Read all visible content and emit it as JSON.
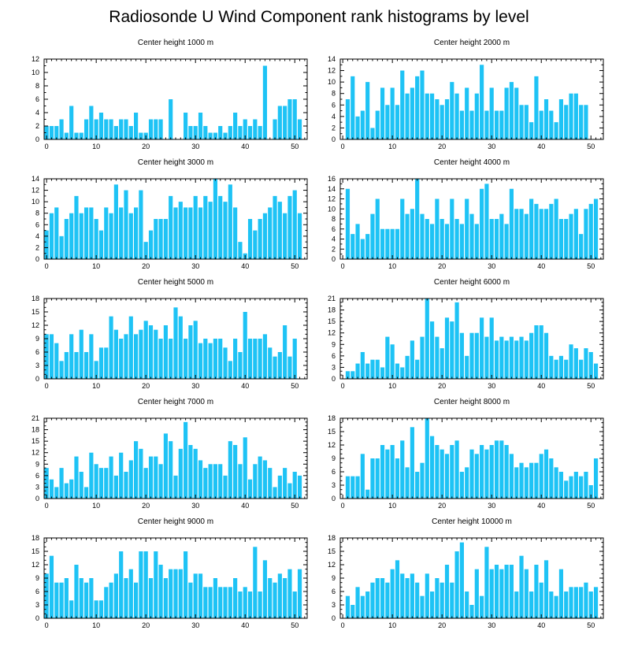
{
  "title": "Radiosonde U Wind Component rank histograms by level",
  "colors": {
    "bar": "#1ec3f5",
    "axis": "#000000",
    "background": "#ffffff"
  },
  "chart_data": [
    {
      "type": "bar",
      "title": "Center height 1000 m",
      "xlim": [
        -0.5,
        52.5
      ],
      "ylim": [
        0,
        12
      ],
      "xticks": [
        0,
        10,
        20,
        30,
        40,
        50
      ],
      "yticks": [
        0,
        2,
        4,
        6,
        8,
        10,
        12
      ],
      "values": [
        2,
        2,
        2,
        3,
        1,
        5,
        1,
        1,
        3,
        5,
        3,
        4,
        3,
        3,
        2,
        3,
        3,
        2,
        4,
        1,
        1,
        3,
        3,
        3,
        0,
        6,
        0,
        0,
        4,
        2,
        2,
        4,
        2,
        1,
        1,
        2,
        1,
        2,
        4,
        2,
        3,
        2,
        3,
        2,
        11,
        0,
        3,
        5,
        5,
        6,
        6,
        3
      ]
    },
    {
      "type": "bar",
      "title": "Center height 2000 m",
      "xlim": [
        -0.5,
        52.5
      ],
      "ylim": [
        0,
        14
      ],
      "xticks": [
        0,
        10,
        20,
        30,
        40,
        50
      ],
      "yticks": [
        0,
        2,
        4,
        6,
        8,
        10,
        12,
        14
      ],
      "values": [
        0,
        7,
        11,
        4,
        5,
        10,
        2,
        5,
        9,
        6,
        9,
        6,
        12,
        8,
        9,
        11,
        12,
        8,
        8,
        7,
        6,
        7,
        10,
        8,
        5,
        9,
        5,
        8,
        13,
        5,
        9,
        5,
        5,
        9,
        10,
        9,
        6,
        6,
        3,
        11,
        5,
        7,
        5,
        3,
        7,
        6,
        8,
        8,
        6,
        6,
        0,
        0
      ]
    },
    {
      "type": "bar",
      "title": "Center height 3000 m",
      "xlim": [
        -0.5,
        52.5
      ],
      "ylim": [
        0,
        14
      ],
      "xticks": [
        0,
        10,
        20,
        30,
        40,
        50
      ],
      "yticks": [
        0,
        2,
        4,
        6,
        8,
        10,
        12,
        14
      ],
      "values": [
        5,
        8,
        9,
        4,
        7,
        8,
        11,
        8,
        9,
        9,
        7,
        5,
        9,
        8,
        13,
        9,
        12,
        8,
        9,
        12,
        3,
        5,
        7,
        7,
        7,
        11,
        9,
        10,
        9,
        9,
        11,
        9,
        11,
        10,
        14,
        11,
        10,
        13,
        9,
        3,
        1,
        7,
        5,
        7,
        8,
        9,
        11,
        10,
        8,
        11,
        12,
        8
      ]
    },
    {
      "type": "bar",
      "title": "Center height 4000 m",
      "xlim": [
        -0.5,
        52.5
      ],
      "ylim": [
        0,
        16
      ],
      "xticks": [
        0,
        10,
        20,
        30,
        40,
        50
      ],
      "yticks": [
        0,
        2,
        4,
        6,
        8,
        10,
        12,
        14,
        16
      ],
      "values": [
        0,
        14,
        5,
        7,
        4,
        5,
        9,
        12,
        6,
        6,
        6,
        6,
        12,
        9,
        10,
        16,
        9,
        8,
        7,
        12,
        8,
        7,
        12,
        8,
        7,
        12,
        9,
        7,
        14,
        15,
        8,
        8,
        9,
        7,
        14,
        10,
        10,
        9,
        12,
        11,
        10,
        10,
        11,
        12,
        8,
        8,
        9,
        10,
        5,
        10,
        11,
        12
      ]
    },
    {
      "type": "bar",
      "title": "Center height 5000 m",
      "xlim": [
        -0.5,
        52.5
      ],
      "ylim": [
        0,
        18
      ],
      "xticks": [
        0,
        10,
        20,
        30,
        40,
        50
      ],
      "yticks": [
        0,
        3,
        6,
        9,
        12,
        15,
        18
      ],
      "values": [
        10,
        10,
        8,
        4,
        6,
        10,
        6,
        11,
        6,
        10,
        4,
        7,
        7,
        14,
        11,
        9,
        10,
        14,
        10,
        11,
        13,
        12,
        11,
        9,
        12,
        9,
        16,
        14,
        9,
        12,
        13,
        8,
        9,
        8,
        9,
        9,
        7,
        4,
        9,
        6,
        15,
        9,
        9,
        9,
        10,
        7,
        5,
        6,
        12,
        5,
        9,
        0
      ]
    },
    {
      "type": "bar",
      "title": "Center height 6000 m",
      "xlim": [
        -0.5,
        52.5
      ],
      "ylim": [
        0,
        21
      ],
      "xticks": [
        0,
        10,
        20,
        30,
        40,
        50
      ],
      "yticks": [
        0,
        3,
        6,
        9,
        12,
        15,
        18,
        21
      ],
      "values": [
        0,
        2,
        2,
        4,
        7,
        4,
        5,
        5,
        3,
        11,
        9,
        4,
        3,
        6,
        10,
        5,
        11,
        21,
        15,
        11,
        8,
        16,
        15,
        20,
        12,
        6,
        12,
        12,
        16,
        11,
        16,
        10,
        11,
        10,
        11,
        10,
        11,
        10,
        12,
        14,
        14,
        12,
        6,
        5,
        6,
        5,
        9,
        8,
        5,
        8,
        7,
        4
      ]
    },
    {
      "type": "bar",
      "title": "Center height 7000 m",
      "xlim": [
        -0.5,
        52.5
      ],
      "ylim": [
        0,
        21
      ],
      "xticks": [
        0,
        10,
        20,
        30,
        40,
        50
      ],
      "yticks": [
        0,
        3,
        6,
        9,
        12,
        15,
        18,
        21
      ],
      "values": [
        8,
        5,
        3,
        8,
        4,
        5,
        11,
        7,
        3,
        12,
        9,
        8,
        8,
        11,
        6,
        12,
        7,
        10,
        15,
        13,
        8,
        11,
        11,
        9,
        17,
        15,
        6,
        13,
        20,
        14,
        13,
        10,
        8,
        9,
        9,
        9,
        6,
        15,
        14,
        9,
        16,
        5,
        9,
        11,
        10,
        8,
        3,
        6,
        8,
        4,
        7,
        6
      ]
    },
    {
      "type": "bar",
      "title": "Center height 8000 m",
      "xlim": [
        -0.5,
        52.5
      ],
      "ylim": [
        0,
        18
      ],
      "xticks": [
        0,
        10,
        20,
        30,
        40,
        50
      ],
      "yticks": [
        0,
        3,
        6,
        9,
        12,
        15,
        18
      ],
      "values": [
        0,
        5,
        5,
        5,
        10,
        2,
        9,
        9,
        12,
        11,
        12,
        9,
        13,
        7,
        16,
        6,
        8,
        18,
        14,
        12,
        11,
        10,
        12,
        13,
        6,
        7,
        11,
        10,
        12,
        11,
        12,
        13,
        13,
        12,
        10,
        7,
        8,
        7,
        8,
        8,
        10,
        11,
        9,
        7,
        6,
        4,
        5,
        6,
        5,
        6,
        3,
        9
      ]
    },
    {
      "type": "bar",
      "title": "Center height 9000 m",
      "xlim": [
        -0.5,
        52.5
      ],
      "ylim": [
        0,
        18
      ],
      "xticks": [
        0,
        10,
        20,
        30,
        40,
        50
      ],
      "yticks": [
        0,
        3,
        6,
        9,
        12,
        15,
        18
      ],
      "values": [
        10,
        14,
        8,
        8,
        9,
        4,
        12,
        9,
        8,
        9,
        4,
        4,
        7,
        8,
        10,
        15,
        9,
        11,
        8,
        15,
        15,
        9,
        15,
        12,
        9,
        11,
        11,
        11,
        15,
        8,
        10,
        10,
        7,
        7,
        9,
        7,
        7,
        7,
        9,
        6,
        7,
        6,
        16,
        6,
        13,
        9,
        8,
        10,
        9,
        11,
        6,
        11
      ]
    },
    {
      "type": "bar",
      "title": "Center height 10000 m",
      "xlim": [
        -0.5,
        52.5
      ],
      "ylim": [
        0,
        18
      ],
      "xticks": [
        0,
        10,
        20,
        30,
        40,
        50
      ],
      "yticks": [
        0,
        3,
        6,
        9,
        12,
        15,
        18
      ],
      "values": [
        0,
        5,
        3,
        7,
        5,
        6,
        8,
        9,
        9,
        8,
        11,
        13,
        10,
        9,
        10,
        8,
        5,
        10,
        6,
        9,
        8,
        12,
        8,
        15,
        17,
        6,
        3,
        11,
        5,
        16,
        11,
        12,
        11,
        12,
        12,
        6,
        14,
        11,
        6,
        12,
        8,
        13,
        6,
        5,
        11,
        6,
        7,
        7,
        7,
        8,
        6,
        7
      ]
    }
  ]
}
